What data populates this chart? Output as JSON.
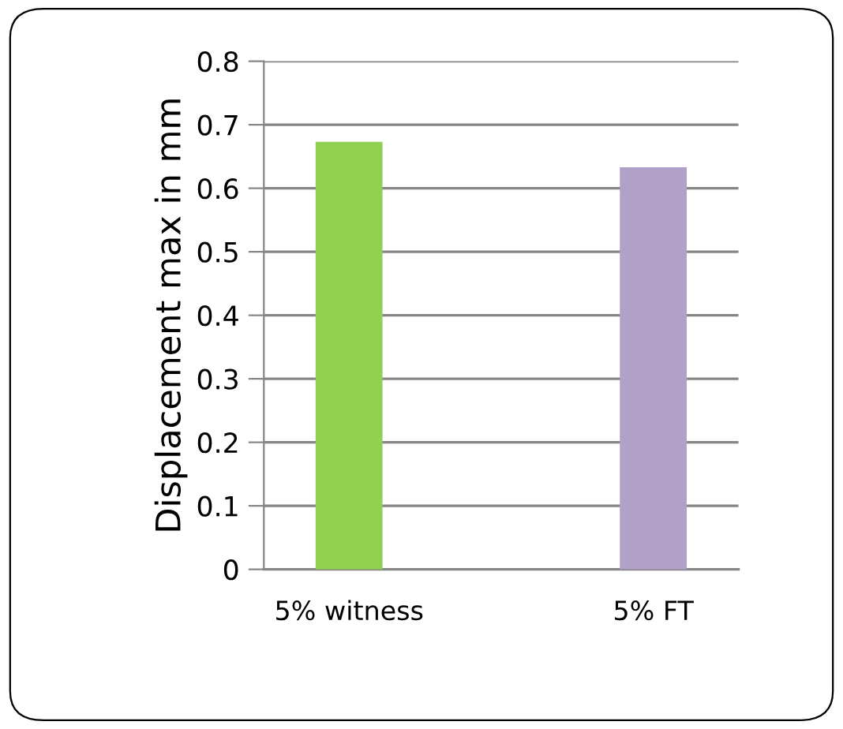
{
  "chart_data": {
    "type": "bar",
    "ylabel": "Displacement max in mm",
    "categories": [
      "5% witness",
      "5% FT"
    ],
    "values": [
      0.673,
      0.633
    ],
    "colors": [
      "#92d050",
      "#b1a0c7"
    ],
    "ylim": [
      0,
      0.8
    ],
    "yticks": [
      0,
      0.1,
      0.2,
      0.3,
      0.4,
      0.5,
      0.6,
      0.7,
      0.8
    ],
    "grid": "y"
  }
}
